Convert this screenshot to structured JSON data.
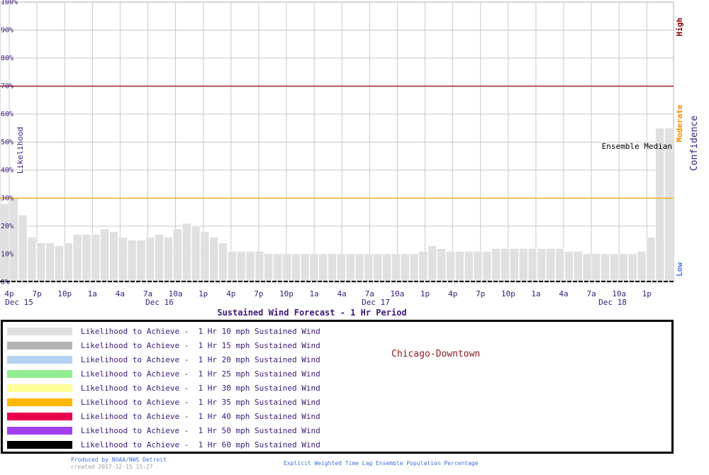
{
  "chart_data": {
    "type": "bar",
    "title": "Sustained Wind Forecast -  1 Hr Period",
    "ylabel": "Likelihood",
    "ylim": [
      0,
      100
    ],
    "y_ticks": [
      "0%",
      "10%",
      "20%",
      "30%",
      "40%",
      "50%",
      "60%",
      "70%",
      "80%",
      "90%",
      "100%"
    ],
    "x_ticks": [
      "4p",
      "7p",
      "10p",
      "1a",
      "4a",
      "7a",
      "10a",
      "1p",
      "4p",
      "7p",
      "10p",
      "1a",
      "4a",
      "7a",
      "10a",
      "1p",
      "4p",
      "7p",
      "10p",
      "1a",
      "4a",
      "7a",
      "10a",
      "1p"
    ],
    "day_labels": [
      "Dec 15",
      "Dec 16",
      "Dec 17",
      "Dec 18"
    ],
    "right_axis": {
      "label": "Confidence",
      "high": "High",
      "moderate": "Moderate",
      "low": "Low",
      "high_threshold": 70,
      "low_threshold": 30
    },
    "annotation": "Ensemble Median",
    "grid": true,
    "series": [
      {
        "name": "Likelihood to Achieve -  1 Hr 10 mph Sustained Wind",
        "color": "#e0e0e0",
        "values": [
          28,
          30,
          24,
          16,
          14,
          14,
          13,
          14,
          17,
          17,
          17,
          19,
          18,
          16,
          15,
          15,
          16,
          17,
          16,
          19,
          21,
          20,
          18,
          16,
          14,
          11,
          11,
          11,
          11,
          10,
          10,
          10,
          10,
          10,
          10,
          10,
          10,
          10,
          10,
          10,
          10,
          10,
          10,
          10,
          10,
          10,
          11,
          13,
          12,
          11,
          11,
          11,
          11,
          11,
          12,
          12,
          12,
          12,
          12,
          12,
          12,
          12,
          11,
          11,
          10,
          10,
          10,
          10,
          10,
          10,
          11,
          16,
          55,
          55
        ]
      },
      {
        "name": "Likelihood to Achieve -  1 Hr 15 mph Sustained Wind",
        "color": "#b4b4b4"
      },
      {
        "name": "Likelihood to Achieve -  1 Hr 20 mph Sustained Wind",
        "color": "#b4d2f0"
      },
      {
        "name": "Likelihood to Achieve -  1 Hr 25 mph Sustained Wind",
        "color": "#90ee90"
      },
      {
        "name": "Likelihood to Achieve -  1 Hr 30 mph Sustained Wind",
        "color": "#ffff9a"
      },
      {
        "name": "Likelihood to Achieve -  1 Hr 35 mph Sustained Wind",
        "color": "#ffb700"
      },
      {
        "name": "Likelihood to Achieve -  1 Hr 40 mph Sustained Wind",
        "color": "#e8004c"
      },
      {
        "name": "Likelihood to Achieve -  1 Hr 50 mph Sustained Wind",
        "color": "#a040f0"
      },
      {
        "name": "Likelihood to Achieve -  1 Hr 60 mph Sustained Wind",
        "color": "#000000"
      }
    ]
  },
  "location": "Chicago-Downtown",
  "footer": {
    "produced_by": "Produced by NOAA/NWS Detroit",
    "created": "created 2017-12-15 15:27",
    "method": "Explicit Weighted Time Lag Ensemble Population Percentage"
  },
  "colors": {
    "axis_text": "#3a1a78",
    "high_line": "#8b0000",
    "low_line": "#f0a000",
    "moderate_text": "#ff8c00",
    "low_text": "#4a7bd8",
    "grid": "#c8c8c8"
  }
}
